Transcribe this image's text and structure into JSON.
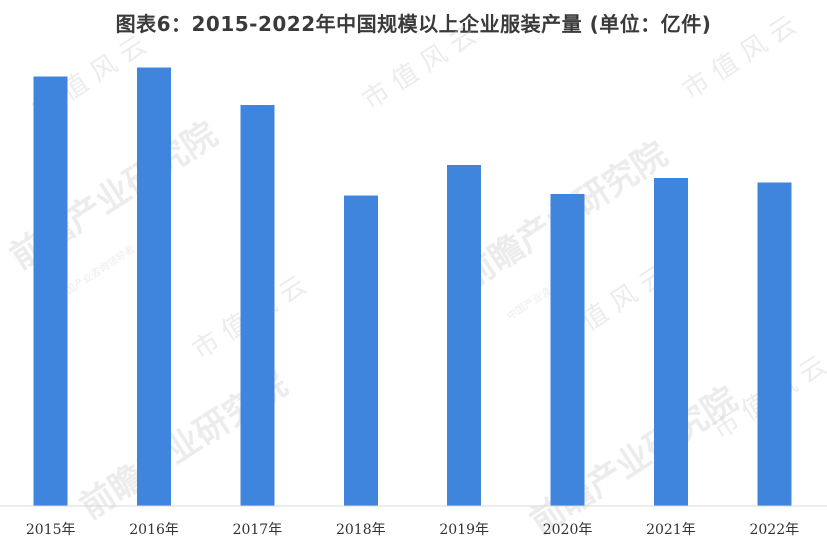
{
  "chart_data": {
    "type": "bar",
    "title": "图表6：2015-2022年中国规模以上企业服装产量 (单位：亿件)",
    "xlabel": "",
    "ylabel": "",
    "categories": [
      "2015年",
      "2016年",
      "2017年",
      "2018年",
      "2019年",
      "2020年",
      "2021年",
      "2022年"
    ],
    "values": [
      308.1,
      314.5,
      287.8,
      222.7,
      244.7,
      223.7,
      235.3,
      232.2
    ],
    "ylim": [
      0,
      340
    ],
    "grid": false,
    "legend": "none",
    "colors": {
      "bar": "#3f85dd",
      "axis": "#d9d9d9",
      "text": "#333333"
    }
  },
  "watermark": {
    "logo_text": "前瞻产业研究院",
    "sub_text": "市 值 风 云",
    "tiny_text": "中国产业咨询领导者"
  }
}
